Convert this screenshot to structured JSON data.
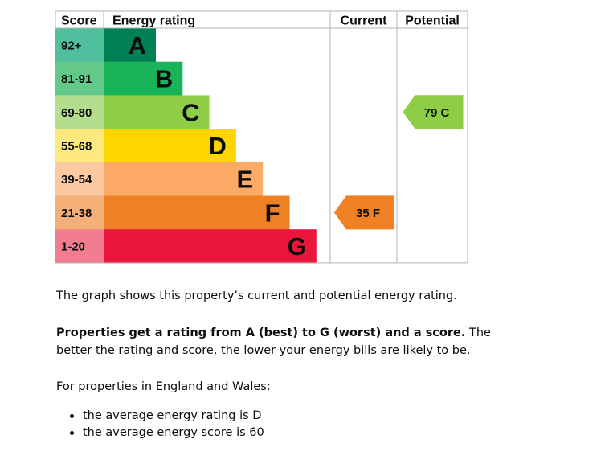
{
  "chart_data": {
    "type": "table",
    "headers": {
      "score": "Score",
      "rating": "Energy rating",
      "current": "Current",
      "potential": "Potential"
    },
    "bands": [
      {
        "letter": "A",
        "range": "92+",
        "color": "#008054",
        "score_color": "#4fbf9d",
        "width_rank": 1
      },
      {
        "letter": "B",
        "range": "81-91",
        "color": "#19b459",
        "score_color": "#63c98b",
        "width_rank": 2
      },
      {
        "letter": "C",
        "range": "69-80",
        "color": "#8dce46",
        "score_color": "#b4de8d",
        "width_rank": 3
      },
      {
        "letter": "D",
        "range": "55-68",
        "color": "#ffd500",
        "score_color": "#fee97f",
        "width_rank": 4
      },
      {
        "letter": "E",
        "range": "39-54",
        "color": "#fcaa65",
        "score_color": "#fccaa2",
        "width_rank": 5
      },
      {
        "letter": "F",
        "range": "21-38",
        "color": "#ef8023",
        "score_color": "#f5b07a",
        "width_rank": 6
      },
      {
        "letter": "G",
        "range": "1-20",
        "color": "#e9153b",
        "score_color": "#f27c90",
        "width_rank": 7
      }
    ],
    "current": {
      "score": 35,
      "band": "F",
      "label": "35  F",
      "color": "#ef8023"
    },
    "potential": {
      "score": 79,
      "band": "C",
      "label": "79  C",
      "color": "#8dce46"
    }
  },
  "text": {
    "p1": "The graph shows this property’s current and potential energy rating.",
    "p2_bold": "Properties get a rating from A (best) to G (worst) and a score.",
    "p2_rest": " The better the rating and score, the lower your energy bills are likely to be.",
    "p3": "For properties in England and Wales:",
    "bullets": [
      "the average energy rating is D",
      "the average energy score is 60"
    ]
  }
}
